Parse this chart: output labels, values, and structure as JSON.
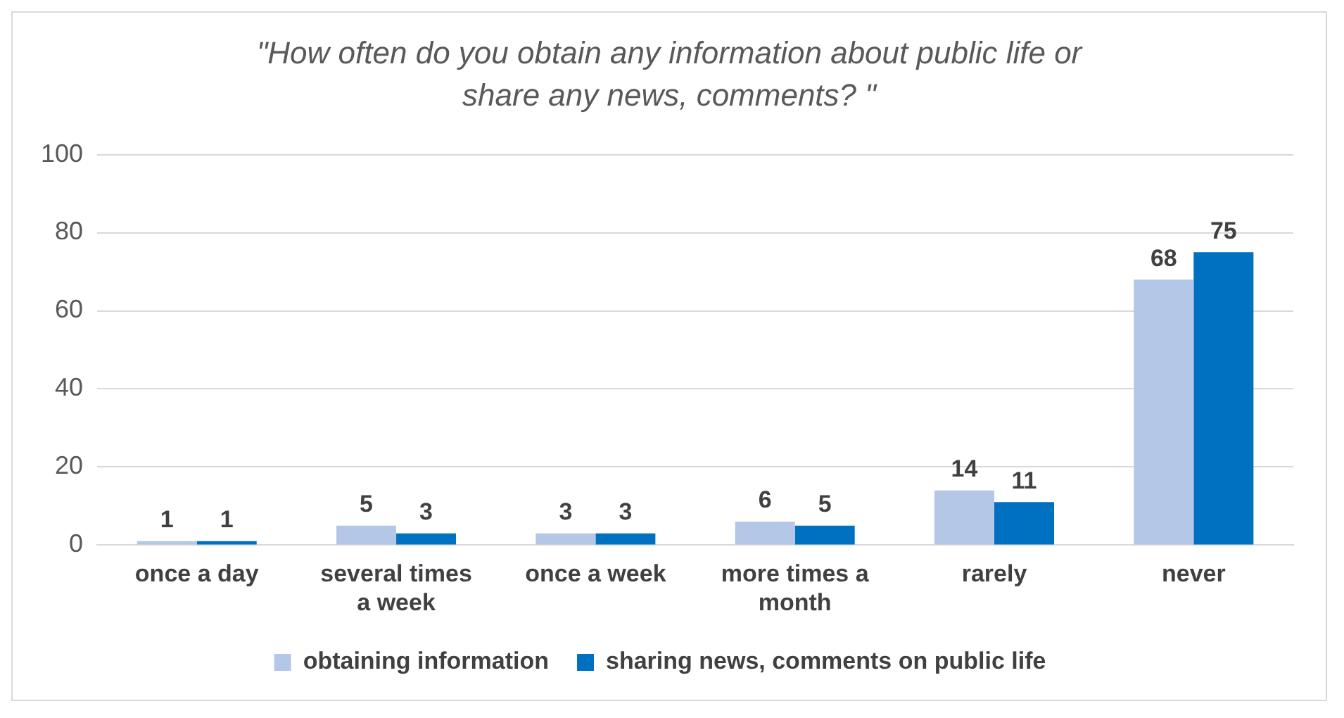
{
  "chart_data": {
    "type": "bar",
    "title": "\"How often do you obtain any information about public life or share any news, comments? \"",
    "categories": [
      "once a day",
      "several times a week",
      "once a week",
      "more times a month",
      "rarely",
      "never"
    ],
    "series": [
      {
        "name": "obtaining information",
        "color": "#b4c7e7",
        "values": [
          1,
          5,
          3,
          6,
          14,
          68
        ]
      },
      {
        "name": "sharing news, comments on public life",
        "color": "#0070c0",
        "values": [
          1,
          3,
          3,
          5,
          11,
          75
        ]
      }
    ],
    "ylim": [
      0,
      100
    ],
    "yticks": [
      0,
      20,
      40,
      60,
      80,
      100
    ],
    "grid": "y",
    "legend": "bottom",
    "data_labels": true
  }
}
